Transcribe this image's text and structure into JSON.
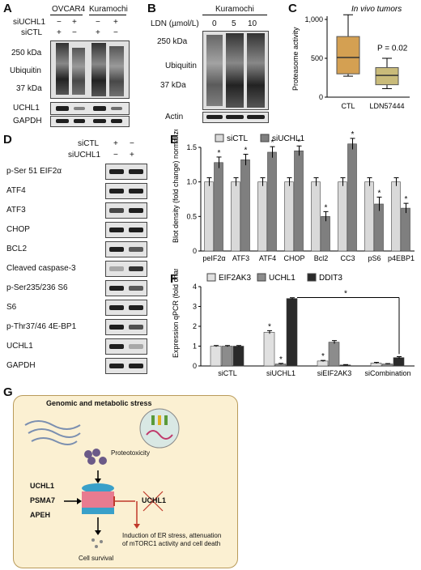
{
  "panels": {
    "A": {
      "letter": "A",
      "col1": "OVCAR4",
      "col2": "Kuramochi",
      "row_siUCHL1": "siUCHL1",
      "row_siCTL": "siCTL",
      "signs_siUCHL1": [
        "−",
        "+",
        "−",
        "+"
      ],
      "signs_siCTL": [
        "+",
        "−",
        "+",
        "−"
      ],
      "mw_top": "250 kDa",
      "ubiquitin": "Ubiquitin",
      "mw_bottom": "37 kDa",
      "uchl1": "UCHL1",
      "gapdh": "GAPDH"
    },
    "B": {
      "letter": "B",
      "ldn": "LDN (µmol/L)",
      "cell": "Kuramochi",
      "doses": [
        "0",
        "5",
        "10"
      ],
      "mw_top": "250 kDa",
      "ubiquitin": "Ubiquitin",
      "mw_bottom": "37 kDa",
      "actin": "Actin"
    },
    "C": {
      "letter": "C",
      "title": "In vivo tumors",
      "ylabel": "Proteasome activity",
      "pvalue": "P = 0.02"
    },
    "D": {
      "letter": "D",
      "siCTL": "siCTL",
      "siUCHL1": "siUCHL1",
      "signs_siCTL": [
        "+",
        "−"
      ],
      "signs_siUCHL1": [
        "−",
        "+"
      ],
      "rows": [
        "p-Ser 51 EIF2α",
        "ATF4",
        "ATF3",
        "CHOP",
        "BCL2",
        "Cleaved caspase-3",
        "p-Ser235/236  S6",
        "S6",
        "p-Thr37/46  4E-BP1",
        "UCHL1",
        "GAPDH"
      ]
    },
    "E": {
      "letter": "E"
    },
    "F": {
      "letter": "F"
    },
    "G": {
      "letter": "G",
      "title": "Genomic and metabolic stress",
      "proteotoxicity": "Proteotoxicity",
      "factors": [
        "UCHL1",
        "PSMA7",
        "APEH"
      ],
      "crossed": "UCHL1",
      "outcome": "Induction of ER stress, attenuation of mTORC1 activity and cell death",
      "survival": "Cell survival"
    }
  },
  "chart_data": [
    {
      "type": "box",
      "panel": "C",
      "title": "In vivo tumors",
      "ylabel": "Proteasome activity",
      "categories": [
        "CTL",
        "LDN57444"
      ],
      "ylim": [
        0,
        1000
      ],
      "yticks": [
        0,
        500,
        1000
      ],
      "boxes": [
        {
          "name": "CTL",
          "min": 270,
          "q1": 300,
          "median": 510,
          "q3": 780,
          "max": 1060,
          "color": "#d4a052"
        },
        {
          "name": "LDN57444",
          "min": 110,
          "q1": 160,
          "median": 280,
          "q3": 380,
          "max": 500,
          "color": "#c9bb7a"
        }
      ],
      "annotation": "P = 0.02"
    },
    {
      "type": "bar",
      "panel": "E",
      "ylabel": "Blot density (fold change) normalized to GAPDH",
      "categories": [
        "peIF2α",
        "ATF3",
        "ATF4",
        "CHOP",
        "Bcl2",
        "CC3",
        "pS6",
        "p4EBP1"
      ],
      "ylim": [
        0,
        1.5
      ],
      "yticks": [
        "0",
        "0.5",
        "1.0",
        "1.5"
      ],
      "series": [
        {
          "name": "siCTL",
          "color": "#d9d9d9",
          "values": [
            1.0,
            1.0,
            1.0,
            1.0,
            1.0,
            1.0,
            1.0,
            1.0
          ],
          "err": [
            0.06,
            0.06,
            0.06,
            0.06,
            0.06,
            0.06,
            0.06,
            0.06
          ]
        },
        {
          "name": "siUCHL1",
          "color": "#7f7f7f",
          "values": [
            1.28,
            1.32,
            1.43,
            1.45,
            0.5,
            1.55,
            0.68,
            0.62
          ],
          "err": [
            0.08,
            0.08,
            0.08,
            0.07,
            0.07,
            0.08,
            0.1,
            0.07
          ]
        }
      ],
      "stars": [
        1,
        1,
        1,
        1,
        1,
        1,
        1,
        1
      ]
    },
    {
      "type": "bar",
      "panel": "F",
      "ylabel": "Expression qPCR (fold change)",
      "categories": [
        "siCTL",
        "siUCHL1",
        "siEIF2AK3",
        "siCombination"
      ],
      "ylim": [
        0,
        4
      ],
      "yticks": [
        "0",
        "1",
        "2",
        "3",
        "4"
      ],
      "series": [
        {
          "name": "EIF2AK3",
          "color": "#e0e0e0",
          "values": [
            1.0,
            1.7,
            0.25,
            0.15
          ],
          "err": [
            0.03,
            0.08,
            0.03,
            0.03
          ]
        },
        {
          "name": "UCHL1",
          "color": "#8c8c8c",
          "values": [
            1.0,
            0.1,
            1.2,
            0.1
          ],
          "err": [
            0.03,
            0.03,
            0.08,
            0.02
          ]
        },
        {
          "name": "DDIT3",
          "color": "#2a2a2a",
          "values": [
            1.0,
            3.4,
            0.05,
            0.42
          ],
          "err": [
            0.03,
            0.04,
            0.02,
            0.05
          ]
        }
      ],
      "star_marks": [
        [
          1,
          0
        ],
        [
          1,
          1
        ],
        [
          2,
          0
        ]
      ],
      "bracket": "*"
    }
  ]
}
